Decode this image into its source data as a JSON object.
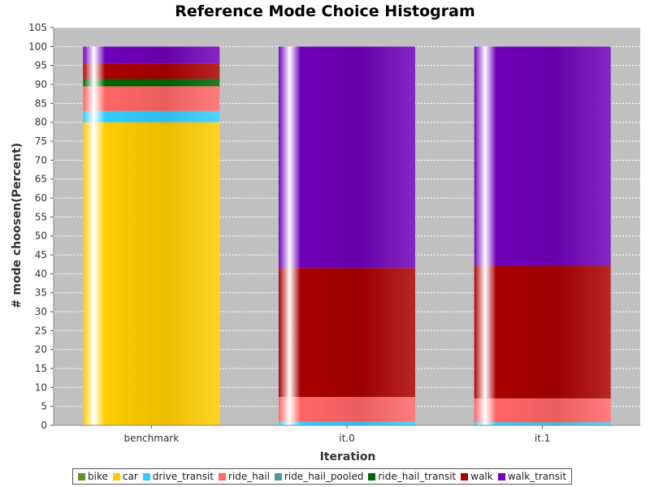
{
  "chart_data": {
    "type": "bar",
    "stacked": true,
    "title": "Reference Mode Choice Histogram",
    "xlabel": "Iteration",
    "ylabel": "# mode choosen(Percent)",
    "categories": [
      "benchmark",
      "it.0",
      "it.1"
    ],
    "ylim": [
      0,
      105
    ],
    "ytick_step": 5,
    "grid": true,
    "legend_position": "bottom",
    "series": [
      {
        "name": "bike",
        "color": "#6b8e23",
        "values": [
          0,
          0,
          0
        ]
      },
      {
        "name": "car",
        "color": "#ffcc00",
        "values": [
          80,
          0,
          0
        ]
      },
      {
        "name": "drive_transit",
        "color": "#33ccff",
        "values": [
          3,
          1,
          0.8
        ]
      },
      {
        "name": "ride_hail",
        "color": "#ff6666",
        "values": [
          6.5,
          6.5,
          6.3
        ]
      },
      {
        "name": "ride_hail_pooled",
        "color": "#4f9a9a",
        "values": [
          0,
          0,
          0
        ]
      },
      {
        "name": "ride_hail_transit",
        "color": "#006400",
        "values": [
          2,
          0,
          0
        ]
      },
      {
        "name": "walk",
        "color": "#aa0000",
        "values": [
          4,
          34,
          35
        ]
      },
      {
        "name": "walk_transit",
        "color": "#7000b8",
        "values": [
          4.5,
          58.5,
          57.9
        ]
      }
    ]
  }
}
